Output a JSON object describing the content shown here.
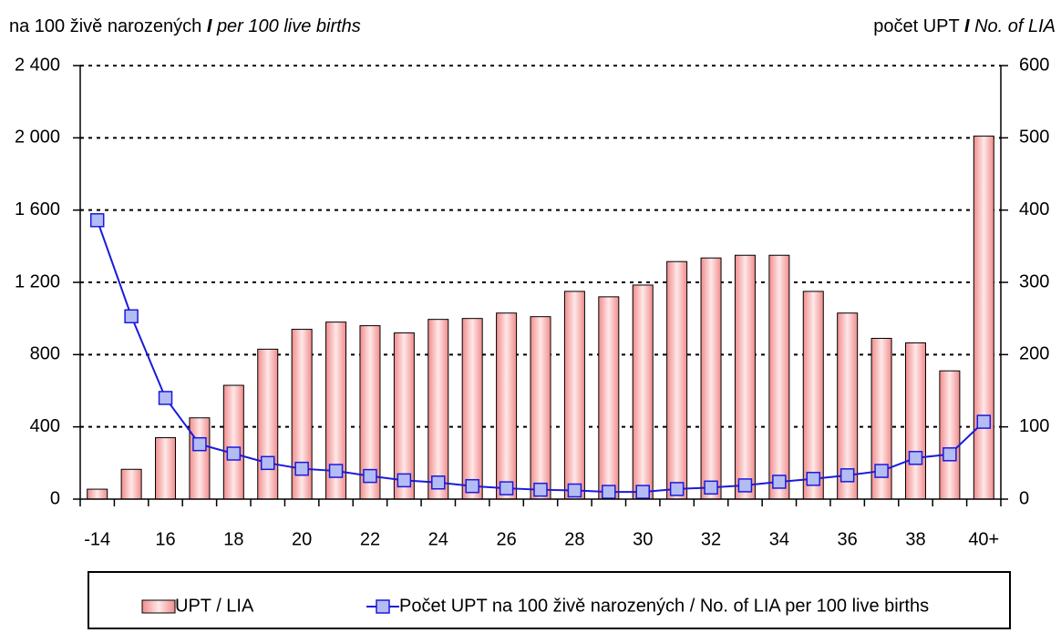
{
  "chart_data": {
    "type": "combo",
    "y_title": [
      "na  100 živě narozených",
      "I",
      "per 100 live births"
    ],
    "y2_title": [
      "počet UPT",
      "I",
      "No. of LIA"
    ],
    "categories": [
      "-14",
      null,
      "16",
      null,
      "18",
      null,
      "20",
      null,
      "22",
      null,
      "24",
      null,
      "26",
      null,
      "28",
      null,
      "30",
      null,
      "32",
      null,
      "34",
      null,
      "36",
      null,
      "38",
      null,
      "40+"
    ],
    "series": [
      {
        "name": "UPT / LIA",
        "type": "bar",
        "axis": "y",
        "color": "#f08c8c",
        "values": [
          55,
          165,
          340,
          450,
          630,
          830,
          940,
          980,
          960,
          920,
          995,
          1000,
          1030,
          1010,
          1150,
          1120,
          1185,
          1315,
          1335,
          1350,
          1350,
          1150,
          1030,
          890,
          865,
          710,
          2010
        ]
      },
      {
        "name": "Počet UPT na 100 živě narozených / No. of LIA per 100 live births",
        "type": "line",
        "axis": "y2",
        "color": "#1a1adc",
        "marker_color": "#b4bcf4",
        "values": [
          386,
          253,
          140,
          76,
          63,
          50,
          42,
          39,
          32,
          26,
          23,
          18,
          15,
          13,
          12,
          10,
          10,
          14,
          16,
          19,
          24,
          28,
          33,
          39,
          57,
          62,
          107
        ]
      }
    ],
    "ylim": [
      0,
      2400
    ],
    "yticks": [
      0,
      400,
      800,
      {
        "value": 1200,
        "label": "1 200"
      },
      {
        "value": 1600,
        "label": "1 600"
      },
      {
        "value": 2000,
        "label": "2 000"
      },
      {
        "value": 2400,
        "label": "2 400"
      }
    ],
    "y2lim": [
      0,
      600
    ],
    "y2ticks": [
      0,
      100,
      200,
      300,
      400,
      500,
      600
    ],
    "grid": true,
    "legend": "bottom"
  }
}
